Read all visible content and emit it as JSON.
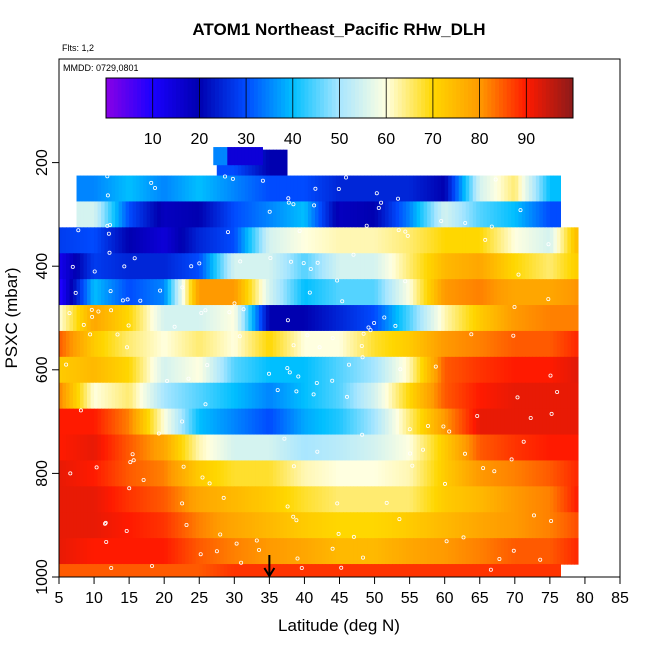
{
  "chart_data": {
    "type": "heatmap",
    "title": "ATOM1 Northeast_Pacific RHw_DLH",
    "flights_label": "Flts: 1,2",
    "dates_label": "MMDD: 0729,0801",
    "xlabel": "Latitude (deg N)",
    "ylabel": "PSXC (mbar)",
    "xlim": [
      5,
      85
    ],
    "ylim": [
      1000,
      0
    ],
    "x_ticks": [
      5,
      10,
      15,
      20,
      25,
      30,
      35,
      40,
      45,
      50,
      55,
      60,
      65,
      70,
      75,
      80,
      85
    ],
    "y_ticks": [
      200,
      400,
      600,
      800,
      1000
    ],
    "grid": false,
    "colorbar": {
      "placement": "top-inside",
      "range": [
        0,
        100
      ],
      "tick_labels": [
        10,
        20,
        30,
        40,
        50,
        60,
        70,
        80,
        90
      ],
      "colors": [
        "#8A00E6",
        "#1A00FF",
        "#0000B0",
        "#004BFF",
        "#00BFFF",
        "#A8E6FF",
        "#FFFFE0",
        "#FFD700",
        "#FF9A00",
        "#FF1A00",
        "#8B1A1A"
      ]
    },
    "marker": {
      "latitude": 35,
      "pressure": 1000,
      "symbol": "arrow-down"
    },
    "rh_grid": {
      "pressure_bands": [
        200,
        250,
        300,
        350,
        400,
        450,
        500,
        550,
        600,
        650,
        700,
        750,
        800,
        850,
        900,
        950,
        1000
      ],
      "columns": [
        {
          "lat": 5,
          "rh": [
            null,
            null,
            null,
            28,
            12,
            8,
            60,
            85,
            72,
            82,
            90,
            90,
            92,
            92,
            92,
            92,
            85
          ]
        },
        {
          "lat": 10,
          "rh": [
            null,
            35,
            55,
            30,
            28,
            40,
            78,
            72,
            75,
            60,
            90,
            92,
            90,
            92,
            92,
            90,
            85
          ]
        },
        {
          "lat": 15,
          "rh": [
            null,
            40,
            30,
            20,
            25,
            30,
            70,
            65,
            70,
            65,
            82,
            85,
            85,
            88,
            90,
            90,
            85
          ]
        },
        {
          "lat": 20,
          "rh": [
            null,
            35,
            18,
            15,
            25,
            35,
            55,
            60,
            55,
            50,
            60,
            78,
            82,
            85,
            88,
            90,
            85
          ]
        },
        {
          "lat": 25,
          "rh": [
            null,
            40,
            20,
            25,
            30,
            80,
            55,
            65,
            60,
            45,
            40,
            62,
            72,
            78,
            82,
            85,
            85
          ]
        },
        {
          "lat": 30,
          "rh": [
            30,
            35,
            30,
            30,
            55,
            80,
            60,
            60,
            45,
            40,
            35,
            55,
            68,
            75,
            78,
            82,
            88
          ]
        },
        {
          "lat": 35,
          "rh": [
            20,
            30,
            35,
            55,
            55,
            55,
            20,
            70,
            40,
            35,
            30,
            55,
            68,
            72,
            75,
            80,
            88
          ]
        },
        {
          "lat": 40,
          "rh": [
            null,
            30,
            40,
            60,
            45,
            40,
            20,
            60,
            40,
            40,
            38,
            50,
            62,
            68,
            72,
            78,
            88
          ]
        },
        {
          "lat": 45,
          "rh": [
            null,
            25,
            18,
            62,
            55,
            45,
            25,
            60,
            45,
            45,
            42,
            52,
            60,
            65,
            70,
            75,
            88
          ]
        },
        {
          "lat": 50,
          "rh": [
            null,
            25,
            20,
            62,
            55,
            45,
            30,
            68,
            50,
            55,
            50,
            55,
            60,
            65,
            70,
            75,
            88
          ]
        },
        {
          "lat": 55,
          "rh": [
            null,
            25,
            35,
            65,
            65,
            60,
            45,
            72,
            62,
            70,
            65,
            60,
            62,
            65,
            72,
            78,
            88
          ]
        },
        {
          "lat": 60,
          "rh": [
            null,
            20,
            55,
            70,
            75,
            80,
            62,
            80,
            85,
            85,
            80,
            72,
            72,
            72,
            75,
            80,
            88
          ]
        },
        {
          "lat": 65,
          "rh": [
            null,
            55,
            45,
            70,
            78,
            82,
            72,
            82,
            88,
            90,
            92,
            85,
            80,
            75,
            78,
            82,
            88
          ]
        },
        {
          "lat": 70,
          "rh": [
            null,
            65,
            40,
            60,
            70,
            78,
            80,
            85,
            90,
            92,
            92,
            88,
            82,
            80,
            80,
            85,
            88
          ]
        },
        {
          "lat": 75,
          "rh": [
            null,
            40,
            30,
            55,
            65,
            78,
            82,
            85,
            90,
            92,
            92,
            90,
            85,
            82,
            82,
            85,
            88
          ]
        },
        {
          "lat": 78,
          "rh": [
            null,
            null,
            null,
            70,
            70,
            80,
            82,
            88,
            92,
            92,
            92,
            90,
            88,
            88,
            85,
            88,
            null
          ]
        }
      ]
    }
  }
}
